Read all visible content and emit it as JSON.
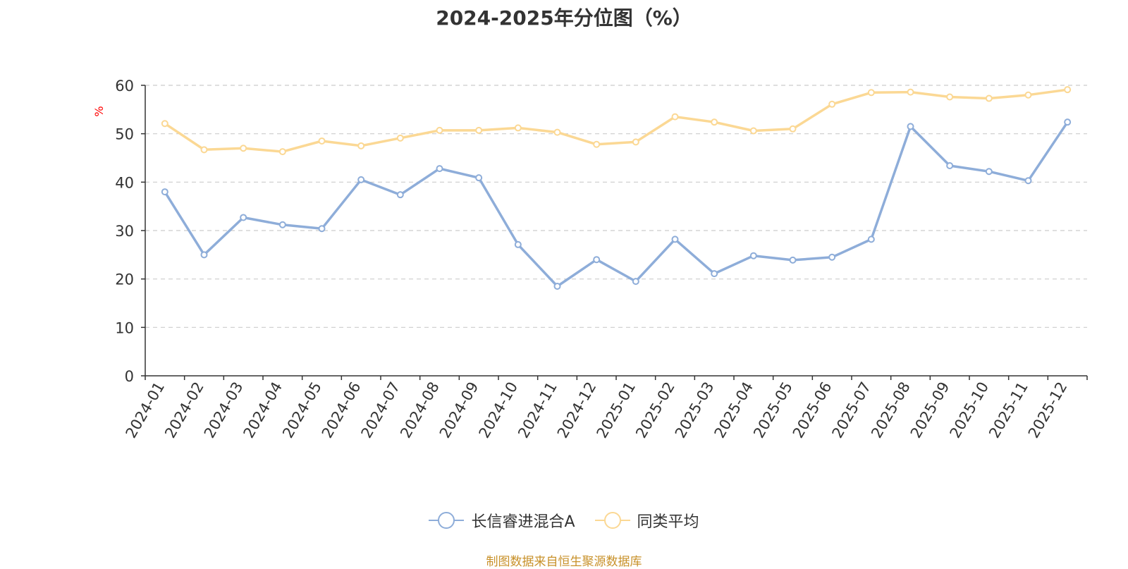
{
  "chart_data": {
    "type": "line",
    "title": "2024-2025年分位图（%）",
    "ylabel": "%",
    "xlabel": "",
    "ylim": [
      0,
      60
    ],
    "yticks": [
      0,
      10,
      20,
      30,
      40,
      50,
      60
    ],
    "grid": "horizontal dashed",
    "legend_position": "bottom",
    "categories": [
      "2024-01",
      "2024-02",
      "2024-03",
      "2024-04",
      "2024-05",
      "2024-06",
      "2024-07",
      "2024-08",
      "2024-09",
      "2024-10",
      "2024-11",
      "2024-12",
      "2025-01",
      "2025-02",
      "2025-03",
      "2025-04",
      "2025-05",
      "2025-06",
      "2025-07",
      "2025-08",
      "2025-09",
      "2025-10",
      "2025-11",
      "2025-12"
    ],
    "series": [
      {
        "name": "长信睿进混合A",
        "color": "#8eadd9",
        "values": [
          38.0,
          25.0,
          32.7,
          31.2,
          30.4,
          40.5,
          37.4,
          42.8,
          40.9,
          27.1,
          18.5,
          24.0,
          19.5,
          28.2,
          21.1,
          24.8,
          23.9,
          24.5,
          28.2,
          51.5,
          43.4,
          42.2,
          40.3,
          52.4
        ]
      },
      {
        "name": "同类平均",
        "color": "#fbd894",
        "values": [
          52.1,
          46.7,
          47.0,
          46.3,
          48.5,
          47.5,
          49.1,
          50.7,
          50.7,
          51.2,
          50.3,
          47.8,
          48.3,
          53.5,
          52.4,
          50.6,
          51.0,
          56.1,
          58.5,
          58.6,
          57.6,
          57.3,
          58.0,
          59.1
        ]
      }
    ]
  },
  "source_note": "制图数据来自恒生聚源数据库",
  "colors": {
    "axis": "#333333",
    "grid": "#cccccc",
    "ylabel": "#ff0000",
    "source": "#c8912a"
  }
}
